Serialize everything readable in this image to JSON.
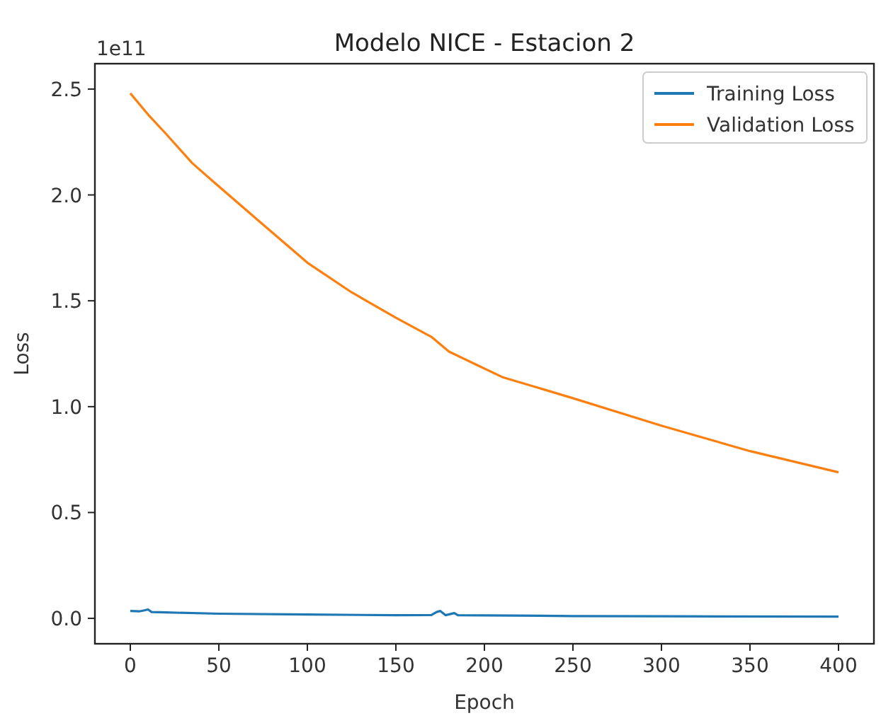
{
  "chart_data": {
    "type": "line",
    "title": "Modelo NICE - Estacion 2",
    "xlabel": "Epoch",
    "ylabel": "Loss",
    "annotations": [
      "1e11"
    ],
    "xlim": [
      -20,
      420
    ],
    "xticks": [
      0,
      50,
      100,
      150,
      200,
      250,
      300,
      350,
      400
    ],
    "ylim": [
      -0.12,
      2.62
    ],
    "yticks": [
      {
        "value": 0,
        "label": "0.0"
      },
      {
        "value": 0.5,
        "label": "0.5"
      },
      {
        "value": 1,
        "label": "1.0"
      },
      {
        "value": 1.5,
        "label": "1.5"
      },
      {
        "value": 2,
        "label": "2.0"
      },
      {
        "value": 2.5,
        "label": "2.5"
      }
    ],
    "legend": "top right",
    "grid": false,
    "marker": "none",
    "line_style": "solid",
    "series": [
      {
        "name": "Training Loss",
        "color": "#1f77b4",
        "x": [
          0,
          5,
          8,
          10,
          12,
          20,
          50,
          100,
          150,
          170,
          173,
          175,
          178,
          183,
          185,
          200,
          250,
          300,
          400
        ],
        "values": [
          0.035,
          0.033,
          0.038,
          0.042,
          0.03,
          0.028,
          0.022,
          0.018,
          0.015,
          0.016,
          0.03,
          0.035,
          0.015,
          0.025,
          0.015,
          0.014,
          0.011,
          0.01,
          0.008
        ]
      },
      {
        "name": "Validation Loss",
        "color": "#ff7f0e",
        "x": [
          0,
          10,
          20,
          35,
          50,
          75,
          100,
          125,
          150,
          170,
          180,
          195,
          210,
          250,
          300,
          350,
          375,
          400
        ],
        "values": [
          2.48,
          2.38,
          2.29,
          2.15,
          2.04,
          1.86,
          1.68,
          1.54,
          1.42,
          1.33,
          1.26,
          1.2,
          1.14,
          1.04,
          0.91,
          0.79,
          0.74,
          0.69
        ]
      }
    ]
  }
}
